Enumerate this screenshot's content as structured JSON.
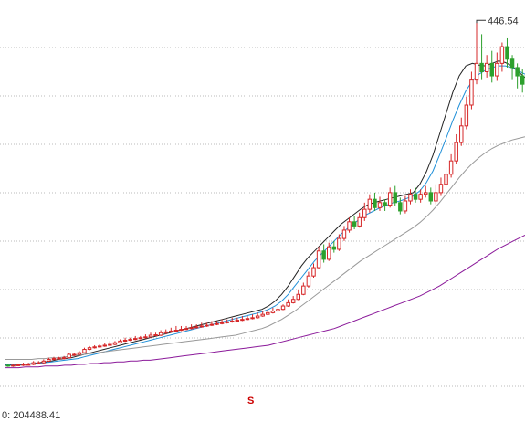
{
  "chart_data": {
    "type": "candlestick",
    "title": "",
    "xlabel": "",
    "ylabel": "",
    "ylim": [
      0,
      460
    ],
    "grid": "horizontal-dashed",
    "colors": {
      "up": "#d62728",
      "down": "#2ca02c",
      "ma_short": "#222222",
      "ma_mid": "#1f8fd8",
      "ma_long": "#999999",
      "ma_longest": "#8b1a9a",
      "grid": "#bbbbbb"
    },
    "annotations": {
      "peak_value": "446.54",
      "marker": "S"
    },
    "candles": [
      [
        33,
        32,
        34,
        31
      ],
      [
        32,
        33,
        35,
        31
      ],
      [
        33,
        33.5,
        35,
        32
      ],
      [
        33,
        34,
        36,
        32
      ],
      [
        34,
        34,
        36,
        33
      ],
      [
        34,
        36,
        38,
        33
      ],
      [
        36,
        36,
        38,
        35
      ],
      [
        36,
        38,
        40,
        35
      ],
      [
        38,
        40,
        42,
        37
      ],
      [
        40,
        41,
        43,
        39
      ],
      [
        41,
        41.5,
        43,
        40
      ],
      [
        41,
        42,
        44,
        40
      ],
      [
        42,
        46,
        48,
        41
      ],
      [
        46,
        46,
        48,
        44
      ],
      [
        46,
        48,
        50,
        45
      ],
      [
        48,
        52,
        54,
        47
      ],
      [
        52,
        54,
        56,
        51
      ],
      [
        54,
        55,
        57,
        53
      ],
      [
        55,
        56,
        58,
        54
      ],
      [
        56,
        57,
        60,
        55
      ],
      [
        57,
        58,
        62,
        56
      ],
      [
        58,
        60,
        62,
        57
      ],
      [
        60,
        62,
        64,
        59
      ],
      [
        62,
        63,
        66,
        61
      ],
      [
        63,
        64,
        66,
        62
      ],
      [
        64,
        65,
        68,
        63
      ],
      [
        65,
        66,
        68,
        64
      ],
      [
        66,
        67,
        70,
        65
      ],
      [
        67,
        69,
        72,
        66
      ],
      [
        69,
        69.5,
        72,
        68
      ],
      [
        69,
        72,
        75,
        68
      ],
      [
        72,
        73,
        76,
        70
      ],
      [
        73,
        74,
        78,
        72
      ],
      [
        74,
        75,
        80,
        73
      ],
      [
        75,
        76,
        80,
        74
      ],
      [
        76,
        77,
        80,
        75
      ],
      [
        77,
        78,
        82,
        76
      ],
      [
        78,
        79,
        82,
        77
      ],
      [
        79,
        80,
        84,
        78
      ],
      [
        80,
        81,
        84,
        79
      ],
      [
        81,
        82,
        86,
        80
      ],
      [
        82,
        83,
        86,
        81
      ],
      [
        83,
        84,
        88,
        82
      ],
      [
        84,
        85,
        88,
        83
      ],
      [
        85,
        86,
        90,
        84
      ],
      [
        86,
        87,
        90,
        85
      ],
      [
        87,
        88,
        92,
        86
      ],
      [
        88,
        89,
        92,
        87
      ],
      [
        89,
        90,
        94,
        88
      ],
      [
        90,
        92,
        96,
        89
      ],
      [
        92,
        94,
        98,
        91
      ],
      [
        94,
        96,
        100,
        93
      ],
      [
        96,
        98,
        102,
        95
      ],
      [
        98,
        100,
        104,
        97
      ],
      [
        100,
        104,
        106,
        99
      ],
      [
        104,
        108,
        112,
        103
      ],
      [
        108,
        112,
        116,
        107
      ],
      [
        112,
        118,
        124,
        111
      ],
      [
        118,
        128,
        132,
        117
      ],
      [
        128,
        140,
        145,
        126
      ],
      [
        140,
        150,
        155,
        138
      ],
      [
        150,
        170,
        175,
        148
      ],
      [
        170,
        160,
        178,
        156
      ],
      [
        160,
        175,
        180,
        158
      ],
      [
        175,
        172,
        182,
        168
      ],
      [
        172,
        185,
        190,
        170
      ],
      [
        185,
        195,
        200,
        182
      ],
      [
        195,
        205,
        210,
        192
      ],
      [
        205,
        200,
        212,
        196
      ],
      [
        200,
        210,
        216,
        198
      ],
      [
        210,
        220,
        228,
        206
      ],
      [
        220,
        232,
        238,
        216
      ],
      [
        232,
        222,
        240,
        218
      ],
      [
        222,
        228,
        235,
        218
      ],
      [
        228,
        225,
        232,
        218
      ],
      [
        225,
        240,
        246,
        222
      ],
      [
        240,
        228,
        248,
        224
      ],
      [
        228,
        218,
        234,
        214
      ],
      [
        218,
        230,
        236,
        215
      ],
      [
        230,
        238,
        244,
        226
      ],
      [
        238,
        232,
        246,
        228
      ],
      [
        232,
        238,
        244,
        228
      ],
      [
        238,
        240,
        248,
        234
      ],
      [
        240,
        230,
        246,
        226
      ],
      [
        230,
        240,
        250,
        226
      ],
      [
        240,
        250,
        258,
        236
      ],
      [
        250,
        262,
        270,
        246
      ],
      [
        262,
        278,
        286,
        258
      ],
      [
        278,
        300,
        310,
        274
      ],
      [
        300,
        320,
        330,
        296
      ],
      [
        320,
        345,
        355,
        316
      ],
      [
        345,
        375,
        385,
        340
      ],
      [
        375,
        395,
        446.54,
        370
      ],
      [
        395,
        385,
        430,
        375
      ],
      [
        385,
        395,
        405,
        378
      ],
      [
        395,
        380,
        410,
        372
      ],
      [
        380,
        395,
        408,
        374
      ],
      [
        395,
        415,
        420,
        385
      ],
      [
        415,
        400,
        425,
        390
      ],
      [
        400,
        390,
        405,
        375
      ],
      [
        390,
        380,
        395,
        365
      ],
      [
        380,
        370,
        388,
        360
      ]
    ],
    "moving_averages": [
      {
        "values": [
          33,
          33,
          33,
          34,
          35,
          36,
          37,
          38,
          40,
          41,
          42,
          44,
          46,
          48,
          50,
          52,
          54,
          56,
          58,
          60,
          62,
          64,
          66,
          68,
          70,
          72,
          74,
          76,
          78,
          80,
          82,
          84,
          86,
          88,
          90,
          92,
          94,
          96,
          98,
          100,
          104,
          110,
          118,
          128,
          140,
          152,
          162,
          170,
          178,
          186,
          194,
          202,
          208,
          214,
          220,
          225,
          228,
          230,
          232,
          234,
          236,
          238,
          240,
          250,
          265,
          285,
          310,
          335,
          360,
          380,
          392,
          395,
          393,
          392,
          395,
          398,
          396,
          392,
          385,
          378
        ]
      },
      {
        "values": [
          34,
          34,
          34,
          34,
          35,
          35,
          36,
          37,
          38,
          39,
          40,
          41,
          43,
          45,
          47,
          49,
          51,
          53,
          55,
          57,
          59,
          61,
          63,
          65,
          67,
          69,
          71,
          73,
          75,
          77,
          79,
          81,
          83,
          85,
          87,
          89,
          91,
          93,
          95,
          97,
          100,
          104,
          110,
          118,
          128,
          138,
          148,
          158,
          166,
          174,
          182,
          190,
          197,
          203,
          209,
          214,
          218,
          222,
          225,
          228,
          230,
          233,
          236,
          242,
          252,
          266,
          285,
          305,
          326,
          345,
          362,
          374,
          382,
          387,
          390,
          392,
          392,
          390,
          386,
          382
        ]
      },
      {
        "values": [
          40,
          40,
          40,
          40,
          40,
          41,
          41,
          42,
          42,
          43,
          44,
          45,
          46,
          47,
          48,
          49,
          50,
          51,
          52,
          53,
          54,
          55,
          56,
          57,
          58,
          59,
          60,
          61,
          62,
          63,
          64,
          65,
          66,
          67,
          68,
          69,
          71,
          73,
          75,
          77,
          80,
          84,
          88,
          93,
          98,
          104,
          110,
          116,
          122,
          128,
          134,
          140,
          146,
          152,
          158,
          163,
          168,
          173,
          178,
          183,
          188,
          193,
          198,
          204,
          211,
          219,
          228,
          238,
          248,
          258,
          267,
          275,
          282,
          288,
          293,
          297,
          300,
          303,
          305,
          307
        ]
      },
      {
        "values": [
          30,
          30,
          30,
          31,
          31,
          31,
          32,
          32,
          32,
          33,
          33,
          34,
          34,
          35,
          35,
          36,
          36,
          37,
          37,
          38,
          38,
          39,
          39,
          40,
          41,
          42,
          43,
          44,
          45,
          46,
          47,
          48,
          49,
          50,
          51,
          52,
          53,
          54,
          55,
          56,
          57,
          59,
          61,
          63,
          65,
          67,
          69,
          71,
          73,
          75,
          77,
          80,
          83,
          86,
          89,
          92,
          95,
          98,
          101,
          104,
          107,
          110,
          113,
          116,
          120,
          124,
          128,
          133,
          138,
          143,
          148,
          153,
          158,
          163,
          168,
          173,
          177,
          181,
          185,
          189
        ]
      }
    ]
  },
  "status": {
    "readout": "0: 204488.41"
  }
}
